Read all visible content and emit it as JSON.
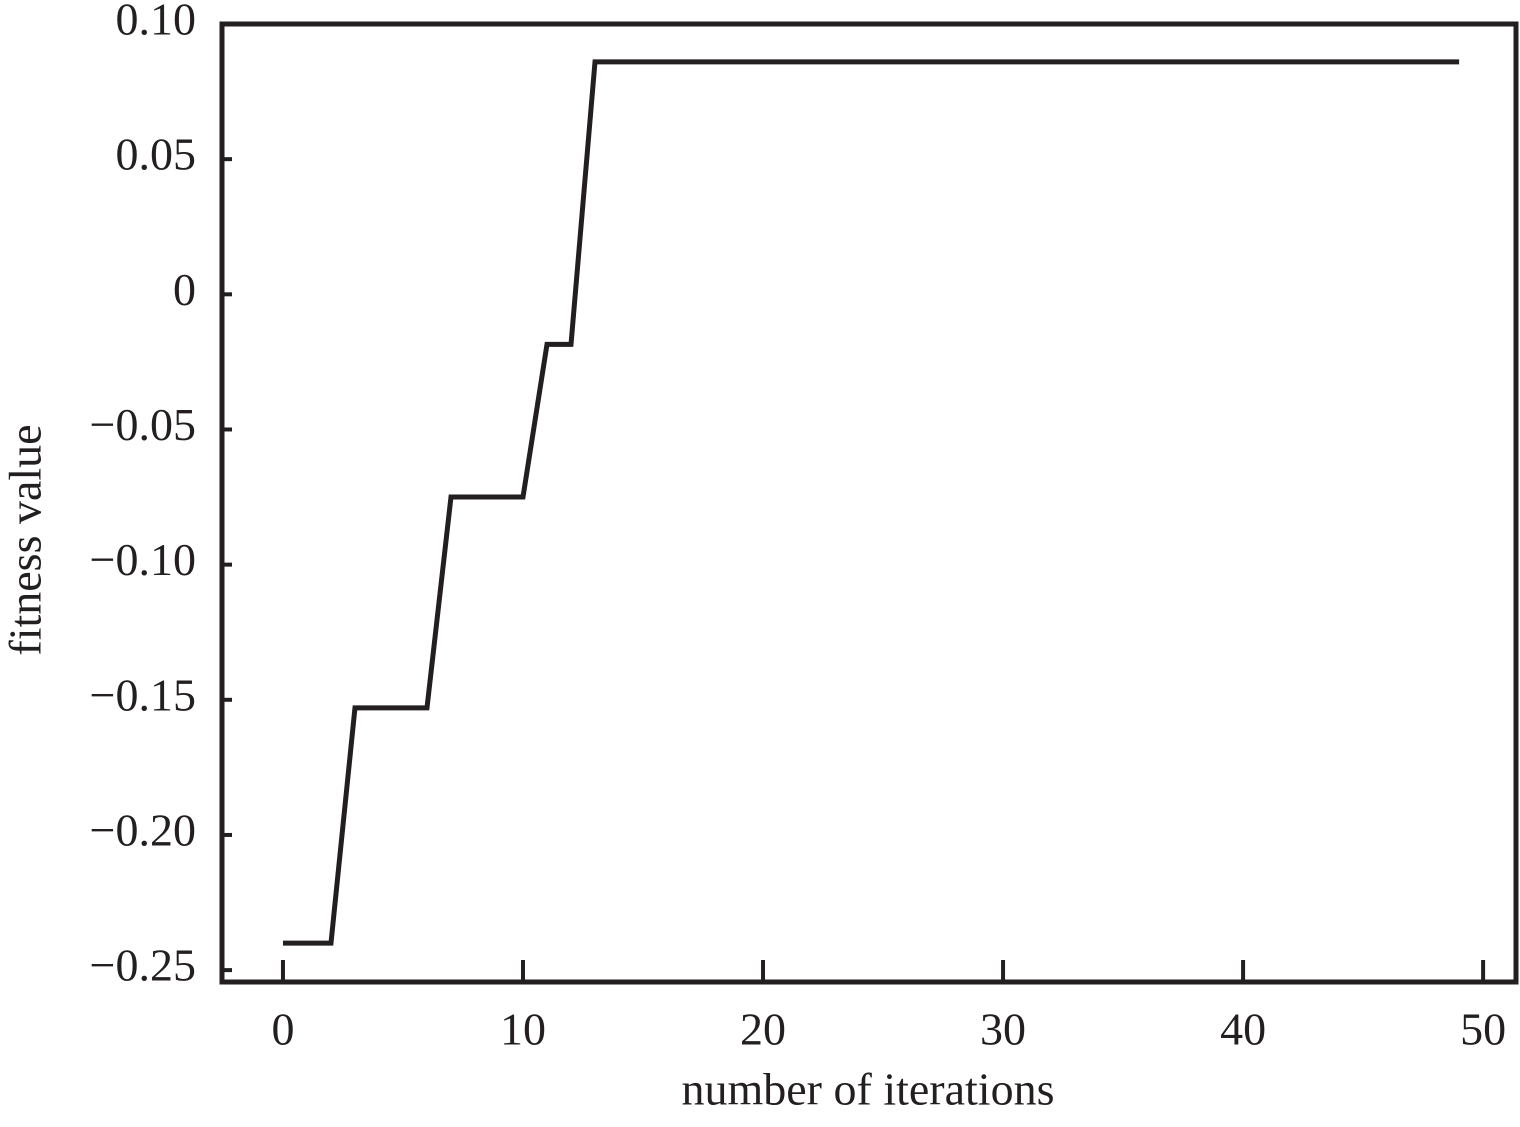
{
  "chart_data": {
    "type": "line",
    "x_label": "number of iterations",
    "y_label": "fitness value",
    "x": [
      0,
      1,
      2,
      3,
      4,
      5,
      6,
      7,
      8,
      9,
      10,
      11,
      12,
      13,
      14,
      15,
      16,
      17,
      18,
      19,
      20,
      21,
      22,
      23,
      24,
      25,
      26,
      27,
      28,
      29,
      30,
      31,
      32,
      33,
      34,
      35,
      36,
      37,
      38,
      39,
      40,
      41,
      42,
      43,
      44,
      45,
      46,
      47,
      48,
      49
    ],
    "series": [
      {
        "color": "#231f20",
        "values": [
          -0.24,
          -0.24,
          -0.24,
          -0.153,
          -0.153,
          -0.153,
          -0.153,
          -0.075,
          -0.075,
          -0.075,
          -0.075,
          -0.0185,
          -0.0185,
          0.086,
          0.086,
          0.086,
          0.086,
          0.086,
          0.086,
          0.086,
          0.086,
          0.086,
          0.086,
          0.086,
          0.086,
          0.086,
          0.086,
          0.086,
          0.086,
          0.086,
          0.086,
          0.086,
          0.086,
          0.086,
          0.086,
          0.086,
          0.086,
          0.086,
          0.086,
          0.086,
          0.086,
          0.086,
          0.086,
          0.086,
          0.086,
          0.086,
          0.086,
          0.086,
          0.086,
          0.086
        ]
      }
    ],
    "xlim": [
      -2.54,
      51.37
    ],
    "ylim": [
      -0.2544,
      0.1
    ],
    "xticks": [
      0,
      10,
      20,
      30,
      40,
      50
    ],
    "yticks": [
      {
        "value": 0.1,
        "label": "0.10"
      },
      0.05,
      0,
      {
        "value": -0.05,
        "label": "−0.05"
      },
      {
        "value": -0.1,
        "label": "−0.10"
      },
      {
        "value": -0.15,
        "label": "−0.15"
      },
      {
        "value": -0.2,
        "label": "−0.20"
      },
      {
        "value": -0.25,
        "label": "−0.25"
      }
    ],
    "grid": false
  }
}
